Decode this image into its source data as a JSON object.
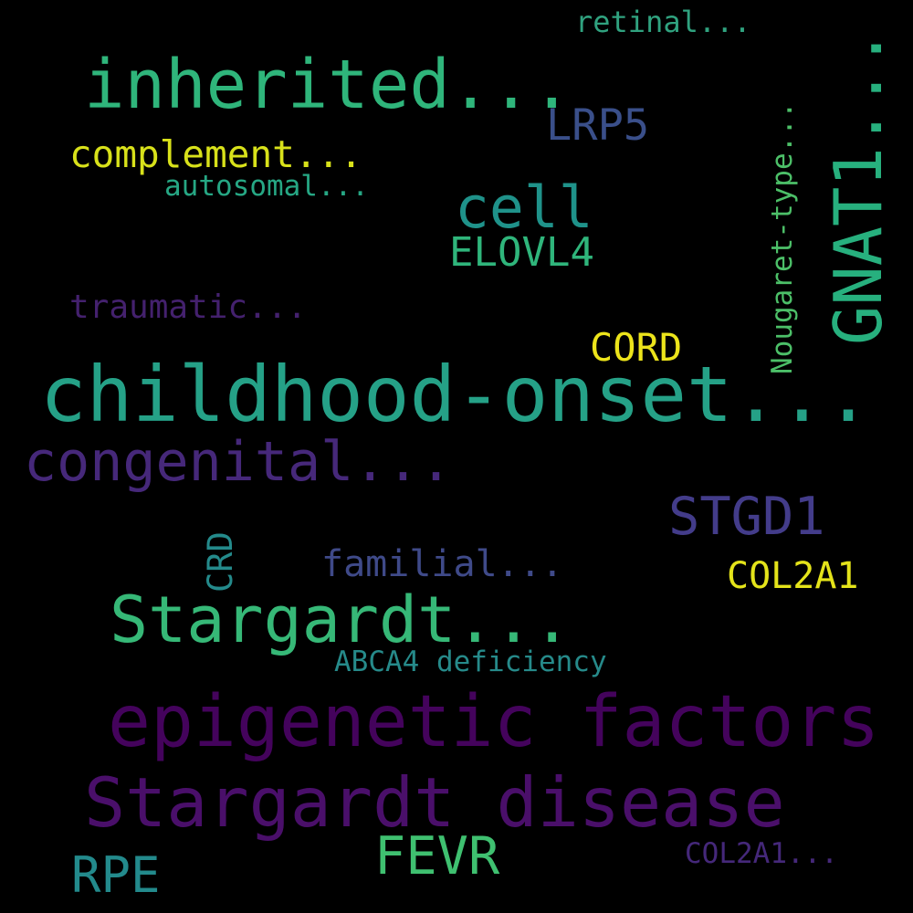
{
  "cloud": {
    "background": "#000000",
    "words": [
      {
        "text": "childhood-onset...",
        "color": "#25a187"
      },
      {
        "text": "epigenetic factors",
        "color": "#44035c"
      },
      {
        "text": "Stargardt disease",
        "color": "#4a0f6a"
      },
      {
        "text": "inherited...",
        "color": "#2fb57b"
      },
      {
        "text": "Stargardt...",
        "color": "#36b877"
      },
      {
        "text": "congenital...",
        "color": "#46287a"
      },
      {
        "text": "cell",
        "color": "#1f928a"
      },
      {
        "text": "STGD1",
        "color": "#433c8a"
      },
      {
        "text": "FEVR",
        "color": "#3fc070"
      },
      {
        "text": "RPE",
        "color": "#238a8c"
      },
      {
        "text": "LRP5",
        "color": "#3a4f8a"
      },
      {
        "text": "ELOVL4",
        "color": "#2fb57b"
      },
      {
        "text": "complement...",
        "color": "#d8e11a"
      },
      {
        "text": "COL2A1",
        "color": "#e4e31a"
      },
      {
        "text": "CORD",
        "color": "#ece41b"
      },
      {
        "text": "familial...",
        "color": "#3f4a89"
      },
      {
        "text": "traumatic...",
        "color": "#44216e"
      },
      {
        "text": "ABCA4 deficiency",
        "color": "#268a8a"
      },
      {
        "text": "retinal...",
        "color": "#30a27f"
      },
      {
        "text": "autosomal...",
        "color": "#26a784"
      },
      {
        "text": "COL2A1...",
        "color": "#45287a"
      },
      {
        "text": "GNAT1...",
        "color": "#27b07e"
      },
      {
        "text": "Nougaret-type...",
        "color": "#4cbf68"
      },
      {
        "text": "CRD",
        "color": "#248a8b"
      }
    ]
  }
}
